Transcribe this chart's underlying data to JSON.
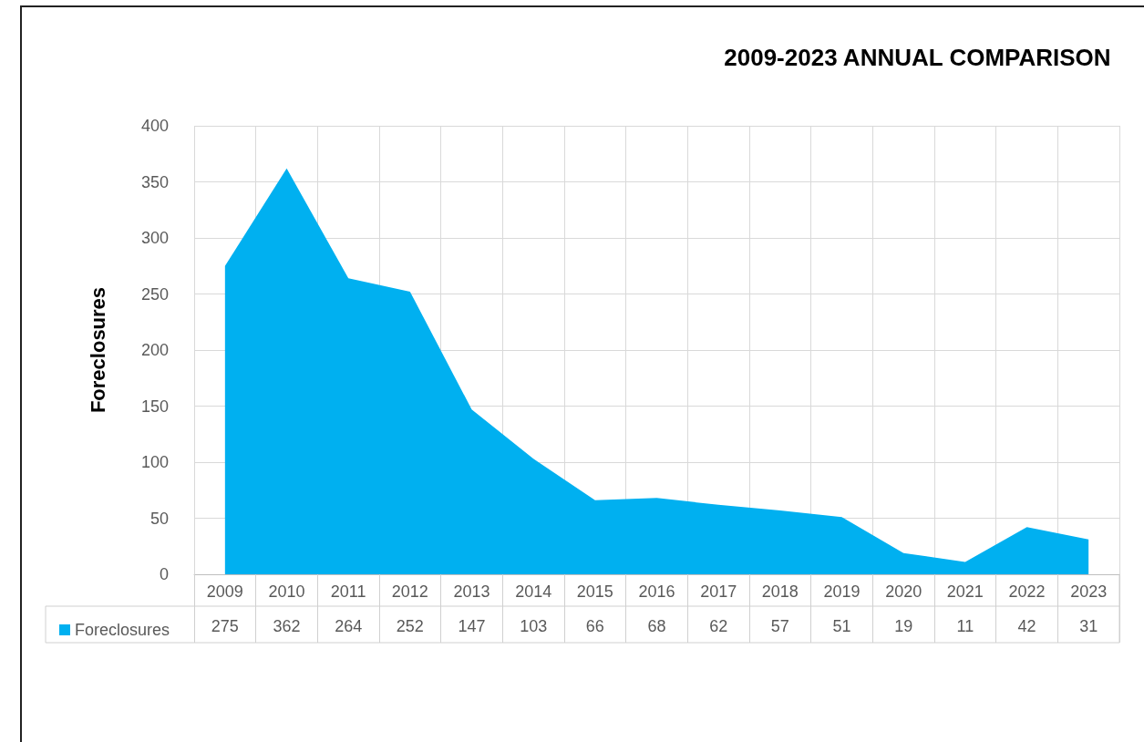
{
  "chart_data": {
    "type": "area",
    "title": "2009-2023 ANNUAL COMPARISON",
    "ylabel": "Foreclosures",
    "categories": [
      "2009",
      "2010",
      "2011",
      "2012",
      "2013",
      "2014",
      "2015",
      "2016",
      "2017",
      "2018",
      "2019",
      "2020",
      "2021",
      "2022",
      "2023"
    ],
    "series": [
      {
        "name": "Foreclosures",
        "color": "#00b0f0",
        "values": [
          275,
          362,
          264,
          252,
          147,
          103,
          66,
          68,
          62,
          57,
          51,
          19,
          11,
          42,
          31
        ]
      }
    ],
    "ylim": [
      0,
      400
    ],
    "yticks": [
      0,
      50,
      100,
      150,
      200,
      250,
      300,
      350,
      400
    ],
    "grid": true,
    "legend": "bottom",
    "data_labels": true
  }
}
